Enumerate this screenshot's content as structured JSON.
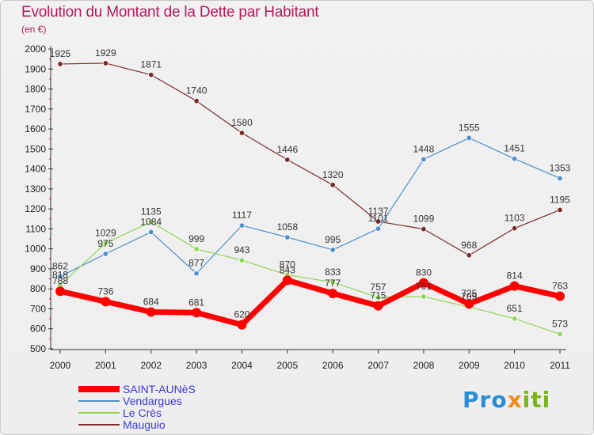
{
  "header": {
    "title": "Evolution du Montant de la Dette par Habitant",
    "subtitle": "(en €)"
  },
  "brand": {
    "text_parts": [
      "Pro",
      "x",
      "iti"
    ],
    "colors": [
      "#2a8dd4",
      "#f08a1c",
      "#7ab51d"
    ]
  },
  "chart_data": {
    "type": "line",
    "title": "Evolution du Montant de la Dette par Habitant",
    "subtitle": "(en €)",
    "categories": [
      "2000",
      "2001",
      "2002",
      "2003",
      "2004",
      "2005",
      "2006",
      "2007",
      "2008",
      "2009",
      "2010",
      "2011"
    ],
    "ylim": [
      500,
      2000
    ],
    "yticks": [
      500,
      600,
      700,
      800,
      900,
      1000,
      1100,
      1200,
      1300,
      1400,
      1500,
      1600,
      1700,
      1800,
      1900,
      2000
    ],
    "grid": false,
    "legend_position": "bottom-left",
    "series": [
      {
        "name": "SAINT-AUNèS",
        "color": "#ff0000",
        "values": [
          788,
          736,
          684,
          681,
          620,
          843,
          777,
          715,
          830,
          725,
          814,
          763
        ]
      },
      {
        "name": "Vendargues",
        "color": "#4f8fcb",
        "values": [
          862,
          975,
          1084,
          877,
          1117,
          1058,
          995,
          1101,
          1448,
          1555,
          1451,
          1353
        ]
      },
      {
        "name": "Le Crès",
        "color": "#8fd655",
        "values": [
          818,
          1029,
          1135,
          999,
          943,
          870,
          833,
          757,
          761,
          709,
          651,
          573
        ]
      },
      {
        "name": "Mauguio",
        "color": "#7a2a2a",
        "values": [
          1925,
          1929,
          1871,
          1740,
          1580,
          1446,
          1320,
          1137,
          1099,
          968,
          1103,
          1195
        ]
      }
    ]
  }
}
